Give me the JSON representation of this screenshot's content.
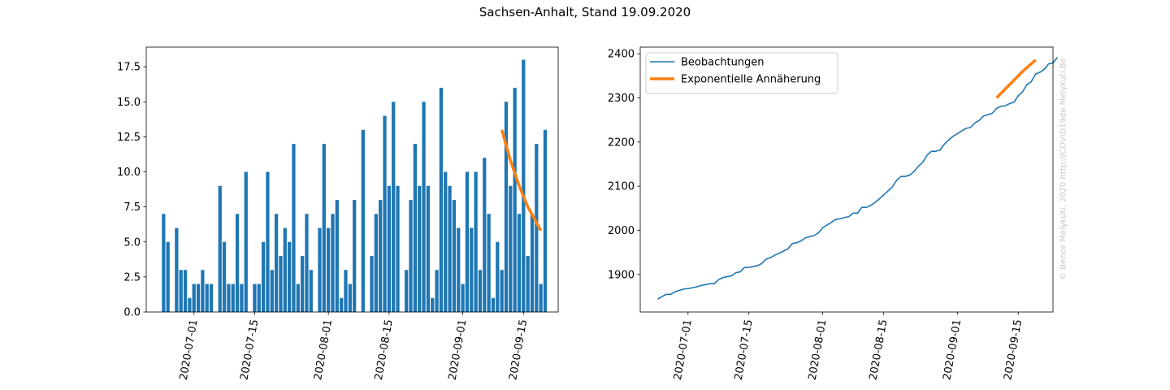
{
  "figure": {
    "title": "Sachsen-Anhalt, Stand 19.09.2020",
    "watermark": "© Bence Melykúti, 2020  http://COVID19de.Melykuti.Be",
    "colors": {
      "bars": "#1f77b4",
      "observations": "#1f77b4",
      "fit": "#ff7f0e"
    }
  },
  "chart_data": [
    {
      "type": "bar",
      "x_type": "date",
      "x_start": "2020-06-24",
      "x_end": "2020-09-19",
      "xlim": [
        "2020-06-20",
        "2020-09-23"
      ],
      "ylim": [
        0,
        18.9
      ],
      "grid": false,
      "x_ticks": [
        "2020-07-01",
        "2020-07-15",
        "2020-08-01",
        "2020-08-15",
        "2020-09-01",
        "2020-09-15"
      ],
      "y_ticks": [
        "0.0",
        "2.5",
        "5.0",
        "7.5",
        "10.0",
        "12.5",
        "15.0",
        "17.5"
      ],
      "values": [
        7,
        5,
        0,
        6,
        3,
        3,
        1,
        2,
        2,
        3,
        2,
        2,
        0,
        9,
        5,
        2,
        2,
        7,
        2,
        10,
        0,
        2,
        2,
        5,
        10,
        3,
        7,
        4,
        6,
        5,
        12,
        2,
        4,
        7,
        3,
        0,
        6,
        12,
        6,
        7,
        8,
        1,
        3,
        2,
        8,
        0,
        13,
        0,
        4,
        7,
        8,
        14,
        9,
        15,
        9,
        0,
        3,
        8,
        12,
        9,
        15,
        9,
        1,
        3,
        16,
        10,
        9,
        8,
        6,
        2,
        10,
        6,
        10,
        3,
        11,
        7,
        1,
        5,
        3,
        15,
        9,
        16,
        7,
        18,
        4,
        7,
        12,
        2,
        13
      ],
      "fit": {
        "x": [
          "2020-09-10",
          "2020-09-12",
          "2020-09-14",
          "2020-09-16",
          "2020-09-19"
        ],
        "y": [
          13,
          10.8,
          9.0,
          7.5,
          5.8
        ]
      }
    },
    {
      "type": "line",
      "x_type": "date",
      "xlim": [
        "2020-06-20",
        "2020-09-23"
      ],
      "ylim": [
        1815,
        2415
      ],
      "grid": false,
      "legend_position": "top-left",
      "x_ticks": [
        "2020-07-01",
        "2020-07-15",
        "2020-08-01",
        "2020-08-15",
        "2020-09-01",
        "2020-09-15"
      ],
      "y_ticks": [
        "1900",
        "2000",
        "2100",
        "2200",
        "2300",
        "2400"
      ],
      "series": [
        {
          "name": "Beobachtungen",
          "x_start": "2020-06-24",
          "values": [
            1844,
            1850,
            1855,
            1855,
            1861,
            1864,
            1867,
            1868,
            1870,
            1872,
            1875,
            1877,
            1879,
            1879,
            1888,
            1893,
            1895,
            1897,
            1904,
            1906,
            1916,
            1916,
            1918,
            1920,
            1925,
            1935,
            1938,
            1944,
            1948,
            1953,
            1958,
            1970,
            1972,
            1976,
            1983,
            1986,
            1988,
            1994,
            2006,
            2012,
            2018,
            2025,
            2026,
            2029,
            2031,
            2039,
            2039,
            2052,
            2052,
            2056,
            2063,
            2071,
            2080,
            2089,
            2098,
            2113,
            2122,
            2122,
            2125,
            2133,
            2145,
            2154,
            2170,
            2179,
            2179,
            2182,
            2195,
            2205,
            2213,
            2219,
            2225,
            2231,
            2233,
            2243,
            2249,
            2259,
            2262,
            2265,
            2276,
            2281,
            2282,
            2287,
            2290,
            2305,
            2314,
            2330,
            2337,
            2354,
            2358,
            2365,
            2377,
            2379,
            2392
          ]
        },
        {
          "name": "Exponentielle Annäherung",
          "x": [
            "2020-09-10",
            "2020-09-13",
            "2020-09-16",
            "2020-09-19"
          ],
          "y": [
            2300,
            2330,
            2360,
            2386
          ]
        }
      ]
    }
  ]
}
